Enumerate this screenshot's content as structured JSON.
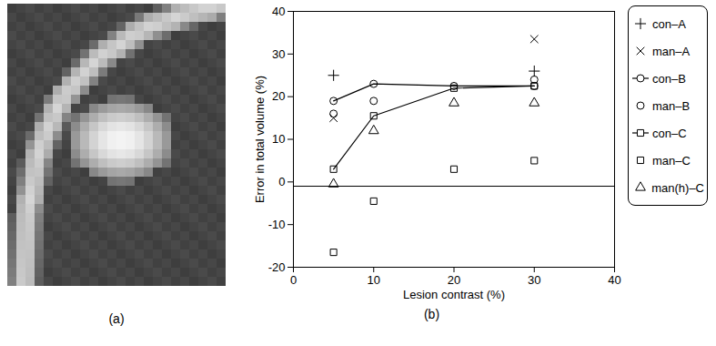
{
  "image_panel": {
    "label": "(a)"
  },
  "chart_data": {
    "type": "scatter",
    "panel_label": "(b)",
    "x_label": "Lesion contrast (%)",
    "y_label": "Error in total volume (%)",
    "xlim": [
      0,
      40
    ],
    "xticks": [
      0,
      10,
      20,
      30,
      40
    ],
    "ylim": [
      -20,
      40
    ],
    "yticks": [
      -20,
      -10,
      0,
      10,
      20,
      30,
      40
    ],
    "reference_line": {
      "y": -1
    },
    "legend": "right",
    "x": [
      5,
      10,
      20,
      30
    ],
    "series": [
      {
        "name": "con–A",
        "type": "scatter",
        "marker": "plus",
        "color": "#000000",
        "values": [
          25,
          null,
          null,
          26
        ]
      },
      {
        "name": "man–A",
        "type": "scatter",
        "marker": "times",
        "color": "#000000",
        "values": [
          15,
          null,
          null,
          33.5
        ]
      },
      {
        "name": "con–B",
        "type": "line",
        "marker": "circle",
        "line_style": "solid",
        "color": "#000000",
        "values": [
          19,
          23,
          22.5,
          22.5
        ]
      },
      {
        "name": "man–B",
        "type": "scatter",
        "marker": "circle",
        "color": "#000000",
        "values": [
          16,
          19,
          null,
          24
        ]
      },
      {
        "name": "con–C",
        "type": "line",
        "marker": "square",
        "line_style": "solid",
        "color": "#000000",
        "values": [
          3,
          15.5,
          22,
          22.5
        ]
      },
      {
        "name": "man–C",
        "type": "scatter",
        "marker": "square",
        "color": "#000000",
        "values": [
          -16.5,
          -4.5,
          3,
          5
        ]
      },
      {
        "name": "man(h)–C",
        "type": "scatter",
        "marker": "triangle",
        "color": "#000000",
        "values": [
          -0.5,
          12,
          18.5,
          18.5
        ]
      }
    ]
  }
}
